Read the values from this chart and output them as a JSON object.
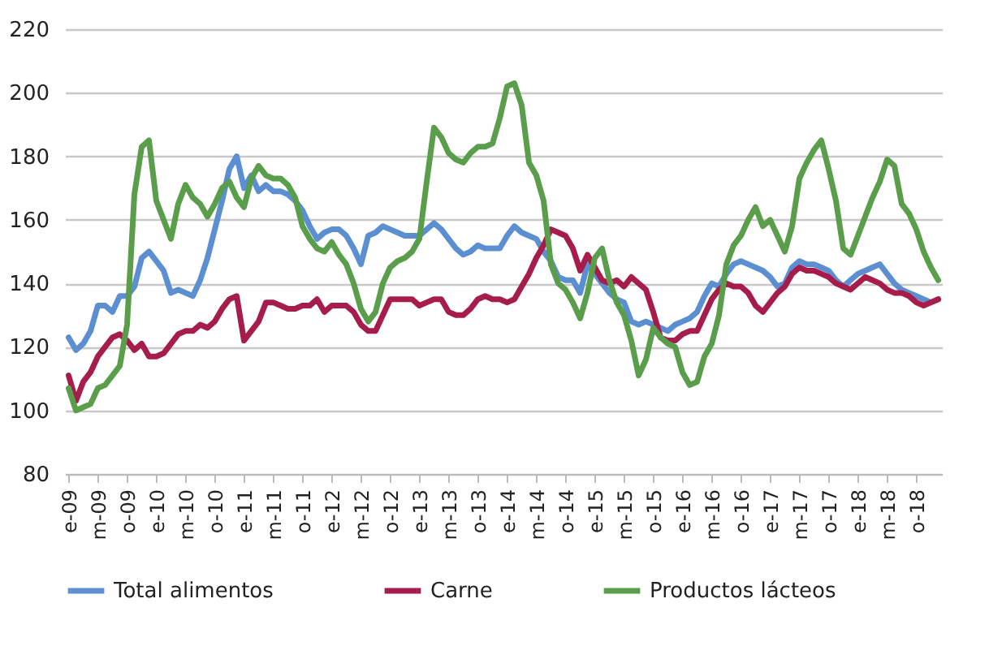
{
  "chart_data": {
    "type": "line",
    "categories": [
      "e-09",
      null,
      null,
      null,
      "m-09",
      null,
      null,
      null,
      "o-09",
      null,
      null,
      null,
      "e-10",
      null,
      null,
      null,
      "m-10",
      null,
      null,
      null,
      "o-10",
      null,
      null,
      null,
      "e-11",
      null,
      null,
      null,
      "m-11",
      null,
      null,
      null,
      "o-11",
      null,
      null,
      null,
      "e-12",
      null,
      null,
      null,
      "m-12",
      null,
      null,
      null,
      "o-12",
      null,
      null,
      null,
      "e-13",
      null,
      null,
      null,
      "m-13",
      null,
      null,
      null,
      "o-13",
      null,
      null,
      null,
      "e-14",
      null,
      null,
      null,
      "m-14",
      null,
      null,
      null,
      "o-14",
      null,
      null,
      null,
      "e-15",
      null,
      null,
      null,
      "m-15",
      null,
      null,
      null,
      "o-15",
      null,
      null,
      null,
      "e-16",
      null,
      null,
      null,
      "m-16",
      null,
      null,
      null,
      "o-16",
      null,
      null,
      null,
      "e-17",
      null,
      null,
      null,
      "m-17",
      null,
      null,
      null,
      "o-17",
      null,
      null,
      null,
      "e-18",
      null,
      null,
      null,
      "m-18",
      null,
      null,
      null,
      "o-18",
      null,
      null,
      null
    ],
    "series": [
      {
        "name": "Total alimentos",
        "color": "#5b8fd1",
        "values": [
          123,
          119,
          121,
          125,
          133,
          133,
          131,
          136,
          136,
          139,
          148,
          150,
          147,
          144,
          137,
          138,
          137,
          136,
          141,
          148,
          157,
          166,
          176,
          180,
          170,
          174,
          169,
          171,
          169,
          169,
          168,
          166,
          163,
          158,
          154,
          156,
          157,
          157,
          155,
          151,
          146,
          155,
          156,
          158,
          157,
          156,
          155,
          155,
          155,
          157,
          159,
          157,
          154,
          151,
          149,
          150,
          152,
          151,
          151,
          151,
          155,
          158,
          156,
          155,
          154,
          150,
          147,
          142,
          141,
          141,
          137,
          146,
          143,
          140,
          137,
          135,
          134,
          128,
          127,
          128,
          127,
          126,
          125,
          127,
          128,
          129,
          131,
          136,
          140,
          139,
          143,
          146,
          147,
          146,
          145,
          144,
          142,
          139,
          140,
          145,
          147,
          146,
          146,
          145,
          144,
          141,
          139,
          141,
          143,
          144,
          145,
          146,
          143,
          140,
          138,
          137,
          136,
          135,
          134,
          135
        ]
      },
      {
        "name": "Carne",
        "color": "#a61c4a",
        "values": [
          111,
          103,
          109,
          112,
          117,
          120,
          123,
          124,
          122,
          119,
          121,
          117,
          117,
          118,
          121,
          124,
          125,
          125,
          127,
          126,
          128,
          132,
          135,
          136,
          122,
          125,
          128,
          134,
          134,
          133,
          132,
          132,
          133,
          133,
          135,
          131,
          133,
          133,
          133,
          131,
          127,
          125,
          125,
          130,
          135,
          135,
          135,
          135,
          133,
          134,
          135,
          135,
          131,
          130,
          130,
          132,
          135,
          136,
          135,
          135,
          134,
          135,
          139,
          143,
          148,
          152,
          157,
          156,
          155,
          151,
          144,
          149,
          145,
          141,
          140,
          141,
          139,
          142,
          140,
          138,
          131,
          123,
          122,
          122,
          124,
          125,
          125,
          130,
          135,
          138,
          140,
          139,
          139,
          137,
          133,
          131,
          134,
          137,
          139,
          143,
          145,
          144,
          144,
          143,
          142,
          140,
          139,
          138,
          140,
          142,
          141,
          140,
          138,
          137,
          137,
          136,
          134,
          133,
          134,
          135
        ]
      },
      {
        "name": "Productos lácteos",
        "color": "#5a9e4b",
        "values": [
          107,
          100,
          101,
          102,
          107,
          108,
          111,
          114,
          127,
          168,
          183,
          185,
          166,
          160,
          154,
          165,
          171,
          167,
          165,
          161,
          165,
          170,
          172,
          167,
          164,
          173,
          177,
          174,
          173,
          173,
          171,
          167,
          158,
          154,
          151,
          150,
          153,
          149,
          146,
          140,
          132,
          128,
          131,
          140,
          145,
          147,
          148,
          150,
          154,
          172,
          189,
          186,
          181,
          179,
          178,
          181,
          183,
          183,
          184,
          192,
          202,
          203,
          196,
          178,
          174,
          166,
          146,
          140,
          138,
          134,
          129,
          137,
          148,
          151,
          141,
          134,
          130,
          122,
          111,
          116,
          126,
          123,
          121,
          120,
          112,
          108,
          109,
          117,
          121,
          130,
          146,
          152,
          155,
          160,
          164,
          158,
          160,
          155,
          150,
          158,
          173,
          178,
          182,
          185,
          176,
          166,
          151,
          149,
          155,
          161,
          167,
          172,
          179,
          177,
          165,
          162,
          157,
          150,
          145,
          141
        ]
      }
    ],
    "ylim": [
      80,
      220
    ],
    "yticks": [
      80,
      100,
      120,
      140,
      160,
      180,
      200,
      220
    ],
    "grid": "y",
    "legend": "bottom",
    "marker": "none",
    "line_style": "solid"
  }
}
